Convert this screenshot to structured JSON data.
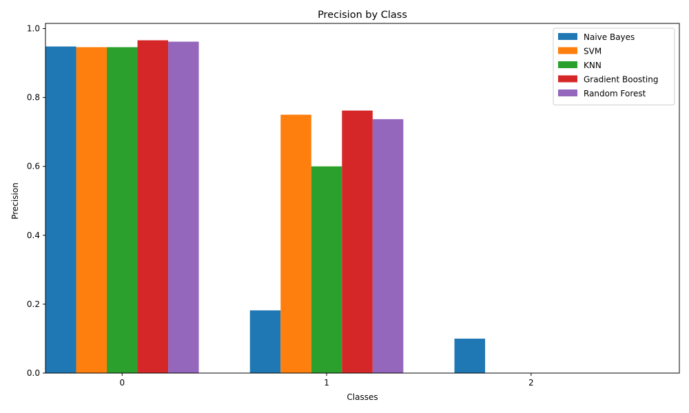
{
  "chart_data": {
    "type": "bar",
    "title": "Precision by Class",
    "xlabel": "Classes",
    "ylabel": "Precision",
    "categories": [
      "0",
      "1",
      "2"
    ],
    "ylim": [
      0,
      1.015
    ],
    "yticks": [
      "0.0",
      "0.2",
      "0.4",
      "0.6",
      "0.8",
      "1.0"
    ],
    "legend_position": "top-right",
    "grid": false,
    "series": [
      {
        "name": "Naive Bayes",
        "color": "#1f77b4",
        "values": [
          0.948,
          0.182,
          0.1
        ]
      },
      {
        "name": "SVM",
        "color": "#ff7f0e",
        "values": [
          0.946,
          0.75,
          0.0
        ]
      },
      {
        "name": "KNN",
        "color": "#2ca02c",
        "values": [
          0.946,
          0.6,
          0.0
        ]
      },
      {
        "name": "Gradient Boosting",
        "color": "#d62728",
        "values": [
          0.966,
          0.762,
          0.0
        ]
      },
      {
        "name": "Random Forest",
        "color": "#9467bd",
        "values": [
          0.962,
          0.737,
          0.0
        ]
      }
    ]
  }
}
